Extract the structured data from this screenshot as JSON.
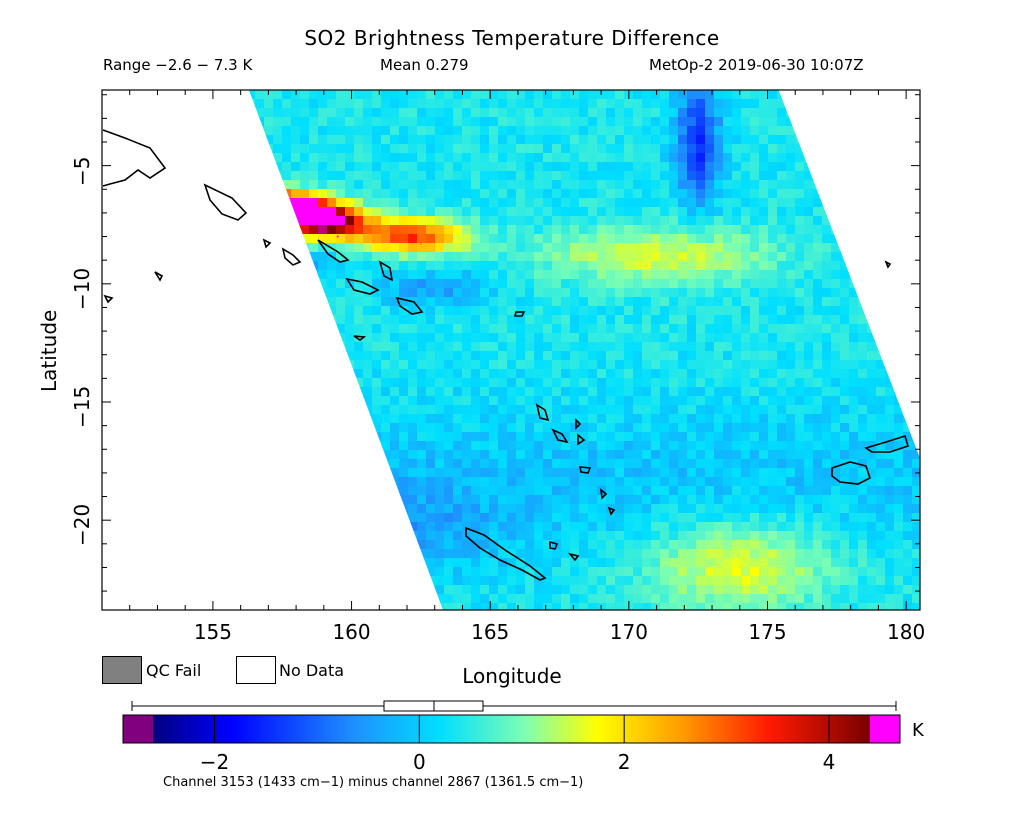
{
  "chart_data": {
    "type": "heatmap",
    "title": "SO2 Brightness Temperature Difference",
    "subtitle": {
      "range": "Range -2.6 - 7.3 K",
      "mean": "Mean 0.279",
      "source": "MetOp-2 2019-06-30 10:07Z"
    },
    "xlabel": "Longitude",
    "ylabel": "Latitude",
    "xlim": [
      151,
      180.5
    ],
    "ylim": [
      -23.8,
      -1.8
    ],
    "xticks": [
      155,
      160,
      165,
      170,
      175,
      180
    ],
    "xtick_labels": [
      "155",
      "160",
      "165",
      "170",
      "175",
      "180"
    ],
    "yticks": [
      -5,
      -10,
      -15,
      -20
    ],
    "ytick_labels": [
      "-5",
      "-10",
      "-15",
      "-20"
    ],
    "grid": false,
    "swath": {
      "top_edge_lon": [
        156.3,
        175.4
      ],
      "bottom_edge_lon": [
        163.3,
        182.6
      ],
      "top_lat": -1.8,
      "bottom_lat": -23.8
    },
    "hotspots": [
      {
        "lon": 157.5,
        "lat": -6.8,
        "value": 7.3
      },
      {
        "lon": 159.5,
        "lat": -8.0,
        "value": 5.0
      },
      {
        "lon": 162.5,
        "lat": -8.3,
        "value": 3.0
      },
      {
        "lon": 172.5,
        "lat": -9.5,
        "value": 1.8
      },
      {
        "lon": 174.0,
        "lat": -22.0,
        "value": 1.8
      }
    ],
    "colorbar": {
      "ticks": [
        -2,
        0,
        2,
        4
      ],
      "tick_labels": [
        "−2",
        "0",
        "2",
        "4"
      ],
      "range": [
        -2.6,
        4.4
      ],
      "unit": "K",
      "caption": "Channel 3153 (1433 cm−1) minus channel 2867 (1361.5 cm−1)"
    },
    "legend": [
      {
        "label": "QC Fail",
        "color": "#808080"
      },
      {
        "label": "No Data",
        "color": "#ffffff"
      }
    ]
  },
  "labels": {
    "title": "SO2 Brightness Temperature Difference",
    "range": "Range −2.6 − 7.3 K",
    "mean": "Mean 0.279",
    "source": "MetOp-2 2019-06-30 10:07Z",
    "xlabel": "Longitude",
    "ylabel": "Latitude",
    "qc_fail": "QC Fail",
    "no_data": "No Data",
    "unit": "K",
    "caption": "Channel 3153 (1433 cm−1) minus channel 2867 (1361.5 cm−1)"
  },
  "colors": {
    "qc_fail": "#808080",
    "no_data": "#ffffff",
    "overflow_high": "#ff00ff",
    "underflow_low": "#800080"
  }
}
